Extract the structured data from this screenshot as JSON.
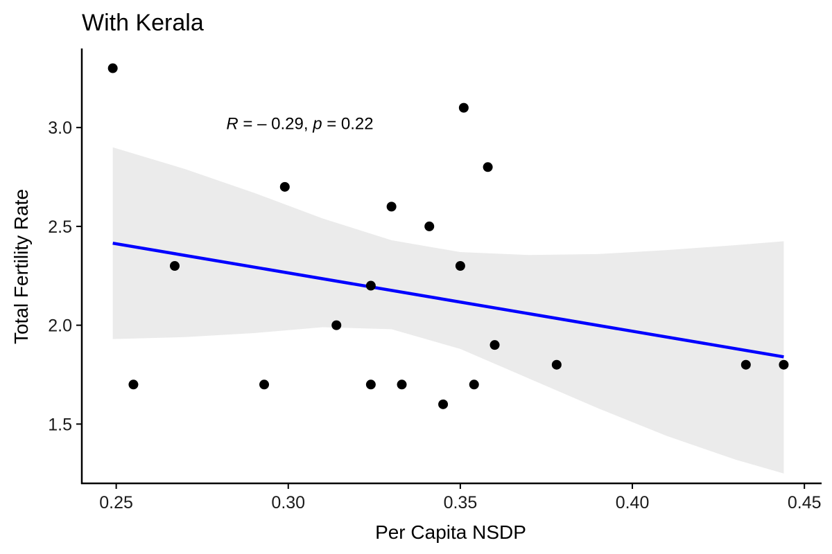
{
  "chart_data": {
    "type": "scatter",
    "title": "With Kerala",
    "xlabel": "Per Capita NSDP",
    "ylabel": "Total Fertility Rate",
    "xlim": [
      0.24,
      0.455
    ],
    "ylim": [
      1.2,
      3.4
    ],
    "x_ticks": [
      0.25,
      0.3,
      0.35,
      0.4,
      0.45
    ],
    "x_tick_labels": [
      "0.25",
      "0.30",
      "0.35",
      "0.40",
      "0.45"
    ],
    "y_ticks": [
      1.5,
      2.0,
      2.5,
      3.0
    ],
    "y_tick_labels": [
      "1.5",
      "2.0",
      "2.5",
      "3.0"
    ],
    "grid": false,
    "annotation": {
      "r_symbol": "R",
      "r_text": " = – 0.29, ",
      "p_symbol": "p",
      "p_text": " = 0.22",
      "x": 0.282,
      "y": 3.02
    },
    "points": [
      {
        "x": 0.249,
        "y": 3.3
      },
      {
        "x": 0.255,
        "y": 1.7
      },
      {
        "x": 0.267,
        "y": 2.3
      },
      {
        "x": 0.293,
        "y": 1.7
      },
      {
        "x": 0.299,
        "y": 2.7
      },
      {
        "x": 0.314,
        "y": 2.0
      },
      {
        "x": 0.324,
        "y": 2.2
      },
      {
        "x": 0.324,
        "y": 1.7
      },
      {
        "x": 0.33,
        "y": 2.6
      },
      {
        "x": 0.333,
        "y": 1.7
      },
      {
        "x": 0.341,
        "y": 2.5
      },
      {
        "x": 0.345,
        "y": 1.6
      },
      {
        "x": 0.35,
        "y": 2.3
      },
      {
        "x": 0.351,
        "y": 3.1
      },
      {
        "x": 0.354,
        "y": 1.7
      },
      {
        "x": 0.358,
        "y": 2.8
      },
      {
        "x": 0.36,
        "y": 1.9
      },
      {
        "x": 0.378,
        "y": 1.8
      },
      {
        "x": 0.433,
        "y": 1.8
      },
      {
        "x": 0.444,
        "y": 1.8
      }
    ],
    "regression": {
      "x": [
        0.249,
        0.444
      ],
      "y": [
        2.415,
        1.84
      ]
    },
    "confidence_band": {
      "x": [
        0.249,
        0.27,
        0.29,
        0.31,
        0.33,
        0.35,
        0.37,
        0.39,
        0.41,
        0.43,
        0.444
      ],
      "upper": [
        2.9,
        2.79,
        2.67,
        2.54,
        2.43,
        2.37,
        2.355,
        2.36,
        2.38,
        2.405,
        2.425
      ],
      "lower": [
        1.93,
        1.94,
        1.96,
        1.99,
        1.98,
        1.88,
        1.73,
        1.58,
        1.44,
        1.32,
        1.25
      ]
    },
    "colors": {
      "point": "#000000",
      "regression": "#0000ff",
      "band": "#ebebeb",
      "axis": "#000000"
    }
  }
}
